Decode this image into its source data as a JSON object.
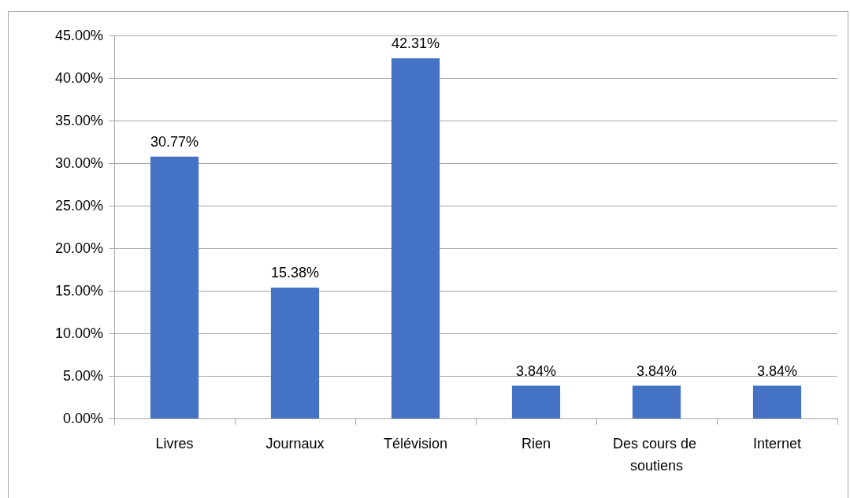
{
  "chart_data": {
    "type": "bar",
    "categories": [
      "Livres",
      "Journaux",
      "Télévision",
      "Rien",
      "Des cours de soutiens",
      "Internet"
    ],
    "values": [
      30.77,
      15.38,
      42.31,
      3.84,
      3.84,
      3.84
    ],
    "value_labels": [
      "30.77%",
      "15.38%",
      "42.31%",
      "3.84%",
      "3.84%",
      "3.84%"
    ],
    "color": "#4472c4",
    "ylim": [
      0,
      45
    ],
    "yticks": [
      {
        "value": 0,
        "label": "0.00%"
      },
      {
        "value": 5,
        "label": "5.00%"
      },
      {
        "value": 10,
        "label": "10.00%"
      },
      {
        "value": 15,
        "label": "15.00%"
      },
      {
        "value": 20,
        "label": "20.00%"
      },
      {
        "value": 25,
        "label": "25.00%"
      },
      {
        "value": 30,
        "label": "30.00%"
      },
      {
        "value": 35,
        "label": "35.00%"
      },
      {
        "value": 40,
        "label": "40.00%"
      },
      {
        "value": 45,
        "label": "45.00%"
      }
    ],
    "grid": "y"
  }
}
